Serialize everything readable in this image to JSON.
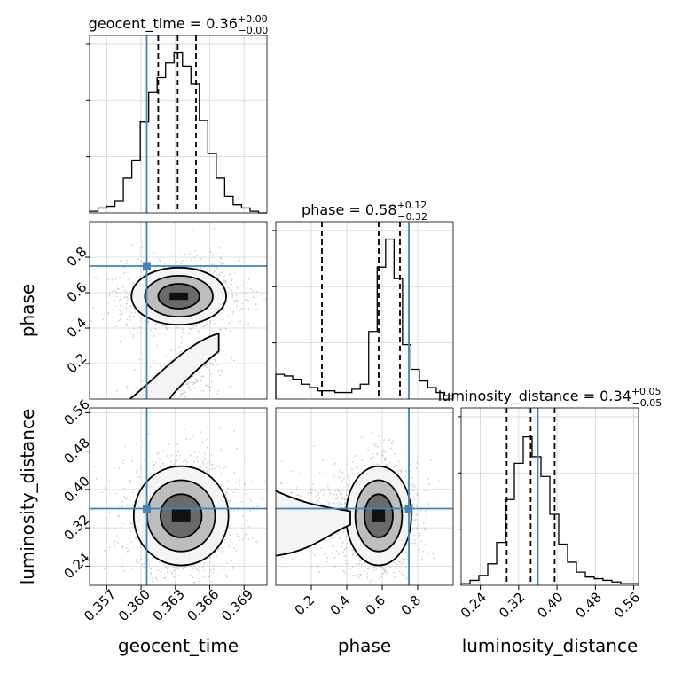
{
  "chart_data": {
    "type": "corner",
    "parameters": [
      {
        "name": "geocent_time",
        "median": 0.36,
        "plus": "+0.00",
        "minus": "−0.00",
        "title_value": "0.36",
        "truth": 0.3605,
        "quantiles": [
          0.3615,
          0.3632,
          0.3648
        ],
        "range": [
          0.3555,
          0.371
        ],
        "ticks": [
          "0.357",
          "0.360",
          "0.363",
          "0.366",
          "0.369"
        ],
        "tick_values": [
          0.357,
          0.36,
          0.363,
          0.366,
          0.369
        ],
        "hist": [
          0.01,
          0.03,
          0.04,
          0.07,
          0.21,
          0.32,
          0.55,
          0.73,
          0.82,
          0.91,
          0.97,
          0.89,
          0.78,
          0.56,
          0.36,
          0.21,
          0.1,
          0.05,
          0.03,
          0.01,
          0.0
        ]
      },
      {
        "name": "phase",
        "median": 0.58,
        "plus": "+0.12",
        "minus": "−0.32",
        "title_value": "0.58",
        "truth": 0.75,
        "quantiles": [
          0.26,
          0.58,
          0.7
        ],
        "range": [
          0.0,
          1.0
        ],
        "ticks": [
          "0.2",
          "0.4",
          "0.6",
          "0.8"
        ],
        "tick_values": [
          0.2,
          0.4,
          0.6,
          0.8
        ],
        "hist": [
          0.15,
          0.14,
          0.12,
          0.09,
          0.07,
          0.05,
          0.05,
          0.04,
          0.04,
          0.06,
          0.09,
          0.41,
          0.8,
          0.97,
          0.73,
          0.33,
          0.18,
          0.11,
          0.07,
          0.04,
          0.02
        ]
      },
      {
        "name": "luminosity_distance",
        "median": 0.34,
        "plus": "+0.05",
        "minus": "−0.05",
        "title_value": "0.34",
        "truth": 0.36,
        "quantiles": [
          0.295,
          0.345,
          0.395
        ],
        "range": [
          0.2,
          0.57
        ],
        "ticks": [
          "0.24",
          "0.32",
          "0.40",
          "0.48",
          "0.56"
        ],
        "tick_values": [
          0.24,
          0.32,
          0.4,
          0.48,
          0.56
        ],
        "hist": [
          0.01,
          0.03,
          0.06,
          0.13,
          0.26,
          0.52,
          0.74,
          0.9,
          0.78,
          0.66,
          0.43,
          0.25,
          0.14,
          0.08,
          0.05,
          0.04,
          0.03,
          0.02,
          0.01,
          0.01
        ]
      }
    ],
    "colors": {
      "truth": "#4682b4",
      "hist": "#000000",
      "grid": "#d3d3d3",
      "points": "#9a9a9a"
    },
    "grid": true
  }
}
